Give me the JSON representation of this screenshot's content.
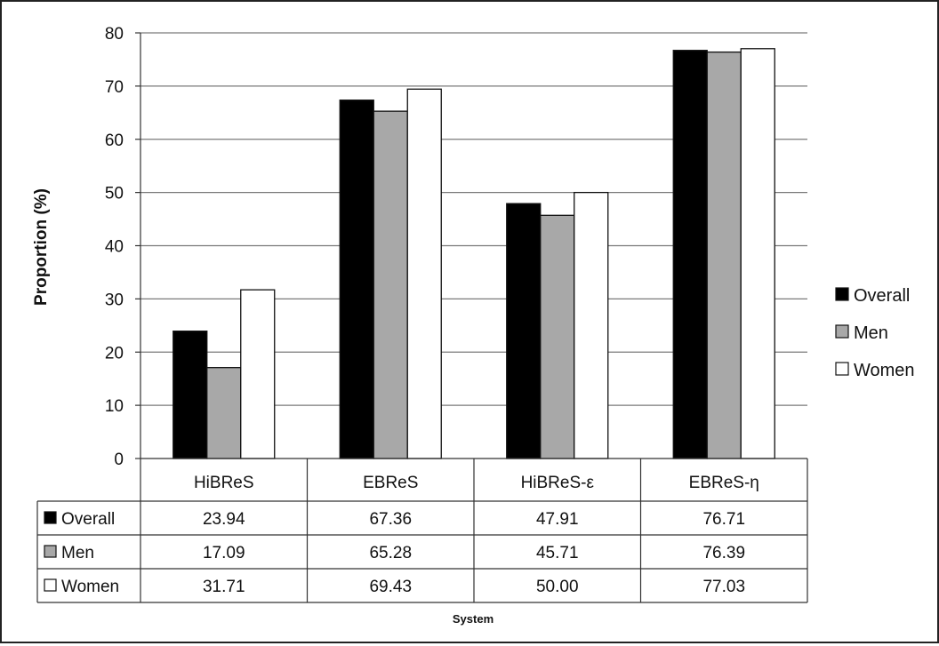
{
  "chart_data": {
    "type": "bar",
    "title": "",
    "xlabel": "System",
    "ylabel": "Proportion (%)",
    "ylim": [
      0,
      80
    ],
    "yticks": [
      0,
      10,
      20,
      30,
      40,
      50,
      60,
      70,
      80
    ],
    "grid": true,
    "legend_placement": "right",
    "categories": [
      "HiBReS",
      "EBReS",
      "HiBReS-ε",
      "EBReS-η"
    ],
    "series": [
      {
        "name": "Overall",
        "color": "#000000",
        "values": [
          23.94,
          67.36,
          47.91,
          76.71
        ],
        "labels": [
          "23.94",
          "67.36",
          "47.91",
          "76.71"
        ]
      },
      {
        "name": "Men",
        "color": "#a8a8a8",
        "values": [
          17.09,
          65.28,
          45.71,
          76.39
        ],
        "labels": [
          "17.09",
          "65.28",
          "45.71",
          "76.39"
        ]
      },
      {
        "name": "Women",
        "color": "#ffffff",
        "values": [
          31.71,
          69.43,
          50.0,
          77.03
        ],
        "labels": [
          "31.71",
          "69.43",
          "50.00",
          "77.03"
        ]
      }
    ],
    "data_table": true
  }
}
